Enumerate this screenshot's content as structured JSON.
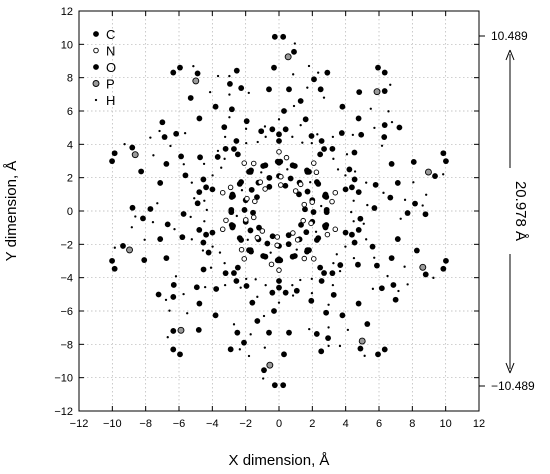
{
  "chart_data": {
    "type": "scatter",
    "xlabel": "X dimension, Å",
    "ylabel": "Y dimension, Å",
    "xlim": [
      -12,
      12
    ],
    "ylim": [
      -12,
      12
    ],
    "xticks": [
      "−12",
      "−10",
      "−8",
      "−6",
      "−4",
      "−2",
      "0",
      "2",
      "4",
      "6",
      "8",
      "10",
      "12"
    ],
    "yticks": [
      "12",
      "10",
      "8",
      "6",
      "4",
      "2",
      "0",
      "−2",
      "−4",
      "−6",
      "−8",
      "−10",
      "−12"
    ],
    "grid": true,
    "legend_position": "top-left",
    "symmetry_fold": 10,
    "series": [
      {
        "name": "C",
        "marker": "filled-circle",
        "color": "#000000",
        "points": [
          [
            0,
            2.9
          ],
          [
            0.95,
            2.7
          ],
          [
            1.8,
            2.35
          ],
          [
            -0.95,
            2.7
          ],
          [
            -1.8,
            2.35
          ],
          [
            0,
            2.1
          ],
          [
            0.7,
            1.95
          ],
          [
            0,
            4.2
          ],
          [
            0.4,
            4.9
          ],
          [
            -0.4,
            4.9
          ],
          [
            1.6,
            5.5
          ],
          [
            1.3,
            6.6
          ],
          [
            2.5,
            7.3
          ],
          [
            2.1,
            7.9
          ],
          [
            2.9,
            8.3
          ],
          [
            0.25,
            10.45
          ],
          [
            -0.25,
            10.45
          ],
          [
            0.9,
            9.55
          ],
          [
            1.2,
            1.0
          ]
        ]
      },
      {
        "name": "N",
        "marker": "open-circle",
        "color": "#ffffff",
        "points": [
          [
            0,
            3.55
          ],
          [
            0.45,
            3.2
          ],
          [
            1.3,
            1.6
          ],
          [
            1.0,
            1.2
          ]
        ]
      },
      {
        "name": "O",
        "marker": "filled-circle",
        "color": "#000000",
        "points": [
          [
            0,
            4.6
          ],
          [
            0.6,
            7.3
          ],
          [
            -0.6,
            7.3
          ],
          [
            0.3,
            6.0
          ],
          [
            1.95,
            4.5
          ],
          [
            -0.3,
            8.6
          ]
        ]
      },
      {
        "name": "P",
        "marker": "grey-circle",
        "color": "#999999",
        "points": [
          [
            0.55,
            9.25
          ]
        ]
      },
      {
        "name": "H",
        "marker": "small-dot",
        "color": "#000000",
        "points": [
          [
            0.8,
            4.45
          ],
          [
            -0.8,
            4.45
          ],
          [
            1.3,
            5.15
          ],
          [
            0.9,
            6.3
          ],
          [
            2.7,
            6.8
          ],
          [
            1.8,
            8.7
          ],
          [
            2.35,
            8.3
          ],
          [
            0.85,
            8.2
          ],
          [
            0,
            5.5
          ],
          [
            0.5,
            2.5
          ],
          [
            2.3,
            4.6
          ],
          [
            1.4,
            4.1
          ],
          [
            1.7,
            7.4
          ],
          [
            0.95,
            10.05
          ]
        ]
      }
    ]
  },
  "right_axis": {
    "top_label": "10.489",
    "bottom_label": "−10.489",
    "dimension_label": "20.978 Å",
    "top_value": 10.489,
    "bottom_value": -10.489
  }
}
